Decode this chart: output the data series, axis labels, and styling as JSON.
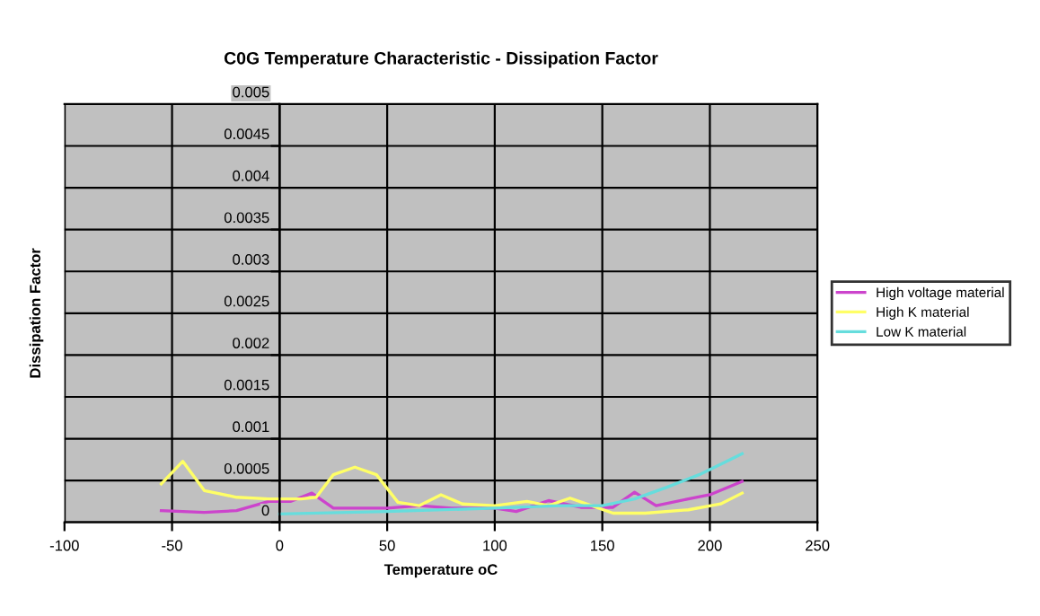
{
  "chart_data": {
    "type": "line",
    "title": "C0G Temperature Characteristic - Dissipation Factor",
    "xlabel": "Temperature oC",
    "ylabel": "Dissipation Factor",
    "xlim": [
      -100,
      250
    ],
    "xticks": [
      -100,
      -50,
      0,
      50,
      100,
      150,
      200,
      250
    ],
    "ylim": [
      0,
      0.005
    ],
    "yticks": [
      0,
      0.0005,
      0.001,
      0.0015,
      0.002,
      0.0025,
      0.003,
      0.0035,
      0.004,
      0.0045,
      0.005
    ],
    "grid": true,
    "legend": "right",
    "marker": "none",
    "line_style": "solid",
    "series": [
      {
        "name": "High voltage material",
        "color": "#cc44cc",
        "x": [
          -55,
          -35,
          -20,
          -5,
          5,
          15,
          25,
          50,
          65,
          80,
          100,
          110,
          125,
          140,
          155,
          165,
          175,
          190,
          200,
          215
        ],
        "values": [
          0.00014,
          0.00012,
          0.00014,
          0.00025,
          0.00025,
          0.00035,
          0.00017,
          0.00017,
          0.0002,
          0.00017,
          0.00017,
          0.00013,
          0.00026,
          0.00018,
          0.00018,
          0.00036,
          0.0002,
          0.00028,
          0.00033,
          0.00049
        ]
      },
      {
        "name": "High K material",
        "color": "#ffff66",
        "x": [
          -55,
          -45,
          -35,
          -20,
          -5,
          10,
          17,
          25,
          35,
          45,
          55,
          65,
          75,
          85,
          100,
          115,
          125,
          135,
          145,
          155,
          170,
          190,
          205,
          215
        ],
        "values": [
          0.00046,
          0.00073,
          0.00038,
          0.0003,
          0.00028,
          0.00028,
          0.0003,
          0.00057,
          0.00066,
          0.00057,
          0.00024,
          0.0002,
          0.00033,
          0.00022,
          0.0002,
          0.00025,
          0.0002,
          0.00029,
          0.0002,
          0.00011,
          0.00011,
          0.00015,
          0.00022,
          0.00035
        ]
      },
      {
        "name": "Low K material",
        "color": "#66dddd",
        "x": [
          0,
          50,
          100,
          130,
          150,
          165,
          180,
          195,
          215
        ],
        "values": [
          0.0001,
          0.00013,
          0.00017,
          0.0002,
          0.0002,
          0.00028,
          0.00042,
          0.00057,
          0.00082
        ]
      }
    ]
  }
}
